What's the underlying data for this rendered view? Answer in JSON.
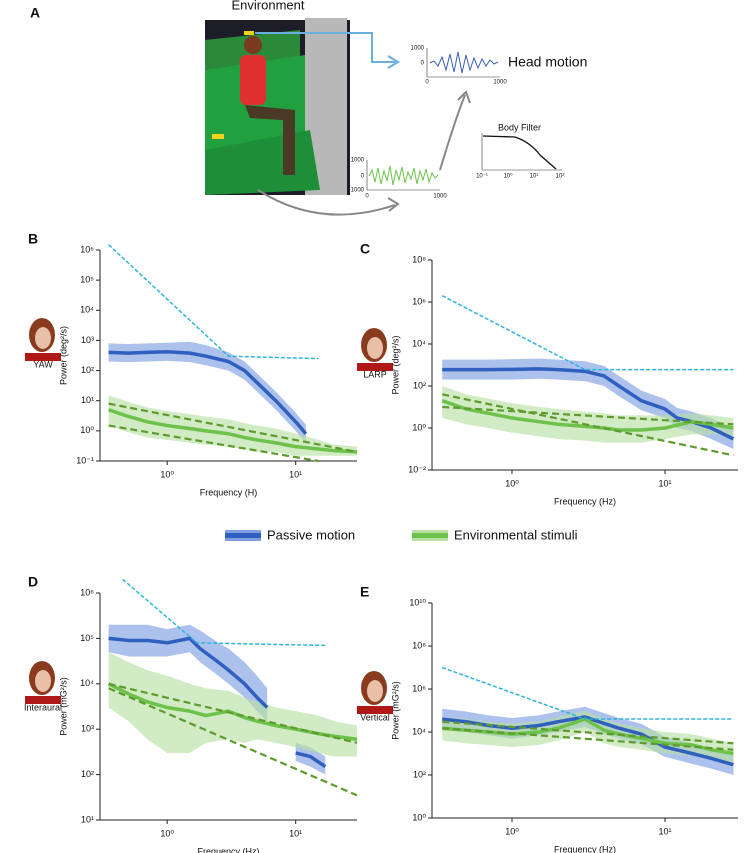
{
  "panel_a": {
    "label": "A",
    "environment": "Environment",
    "head_motion": "Head motion",
    "body_filter": "Body Filter",
    "head_chart": {
      "yticks": [
        1000,
        0
      ],
      "xticks": [
        0,
        1000
      ]
    },
    "env_chart": {
      "yticks": [
        1000,
        0,
        -1000
      ],
      "xticks": [
        0,
        1000
      ]
    },
    "filter_chart": {
      "xticks": [
        "10⁻¹",
        "10⁰",
        "10¹",
        "10²"
      ]
    }
  },
  "legend": [
    {
      "name": "Passive motion",
      "color": "#2f5fbf"
    },
    {
      "name": "Environmental stimuli",
      "color": "#6cc24a"
    }
  ],
  "chart_data": [
    {
      "type": "line",
      "panel": "B",
      "icon_label": "YAW",
      "ylabel": "Power (deg²/s)",
      "xlabel": "Frequency (H)",
      "log_x": true,
      "log_y": true,
      "xlim": [
        0.3,
        30
      ],
      "ylim": [
        0.1,
        1000000
      ],
      "xticks": [
        {
          "value": 1,
          "label": "10⁰"
        },
        {
          "value": 10,
          "label": "10¹"
        }
      ],
      "yticks": [
        {
          "value": 0.1,
          "label": "10⁻¹"
        },
        {
          "value": 1,
          "label": "10⁰"
        },
        {
          "value": 10,
          "label": "10¹"
        },
        {
          "value": 100,
          "label": "10²"
        },
        {
          "value": 1000,
          "label": "10³"
        },
        {
          "value": 10000,
          "label": "10⁴"
        },
        {
          "value": 100000,
          "label": "10⁵"
        },
        {
          "value": 1000000,
          "label": "10⁶"
        }
      ],
      "series": [
        {
          "color": "#2f5fbf",
          "band_color": "#7f9fe0",
          "x": [
            0.35,
            0.5,
            0.7,
            1,
            1.5,
            2,
            3,
            4,
            5,
            7,
            10,
            12
          ],
          "values": [
            400,
            380,
            400,
            420,
            380,
            300,
            200,
            100,
            40,
            10,
            2,
            0.8
          ],
          "lower": [
            200,
            190,
            200,
            210,
            190,
            150,
            100,
            50,
            20,
            5,
            1,
            0.4
          ],
          "upper": [
            800,
            760,
            800,
            840,
            900,
            700,
            400,
            200,
            80,
            20,
            4,
            1.6
          ]
        },
        {
          "color": "#6cc24a",
          "band_color": "#b9e0a4",
          "x": [
            0.35,
            0.5,
            0.7,
            1,
            1.5,
            2,
            3,
            4,
            5,
            7,
            10,
            15,
            20,
            30
          ],
          "values": [
            5,
            3,
            2,
            1.5,
            1.2,
            1,
            0.8,
            0.6,
            0.5,
            0.4,
            0.3,
            0.25,
            0.22,
            0.2
          ],
          "lower": [
            1.5,
            0.9,
            0.6,
            0.5,
            0.4,
            0.35,
            0.3,
            0.25,
            0.2,
            0.2,
            0.15,
            0.15,
            0.15,
            0.15
          ],
          "upper": [
            15,
            9,
            6,
            4.5,
            3.6,
            3,
            2.4,
            1.8,
            1.5,
            1.2,
            0.8,
            0.5,
            0.35,
            0.3
          ]
        }
      ],
      "fits": [
        {
          "color": "#2bb5d8",
          "x": [
            0.35,
            3,
            15
          ],
          "values": [
            1500000,
            300,
            250
          ]
        },
        {
          "color": "#5e9a2e",
          "x": [
            0.35,
            30
          ],
          "values": [
            8,
            0.2
          ]
        },
        {
          "color": "#5e9a2e",
          "x": [
            0.35,
            15
          ],
          "values": [
            1.5,
            0.1
          ]
        }
      ]
    },
    {
      "type": "line",
      "panel": "C",
      "icon_label": "LARP",
      "ylabel": "Power (deg²/s)",
      "xlabel": "Frequency (Hz)",
      "log_x": true,
      "log_y": true,
      "xlim": [
        0.3,
        30
      ],
      "ylim": [
        0.01,
        100000000
      ],
      "xticks": [
        {
          "value": 1,
          "label": "10⁰"
        },
        {
          "value": 10,
          "label": "10¹"
        }
      ],
      "yticks": [
        {
          "value": 0.01,
          "label": "10⁻²"
        },
        {
          "value": 1,
          "label": "10⁰"
        },
        {
          "value": 100,
          "label": "10²"
        },
        {
          "value": 10000,
          "label": "10⁴"
        },
        {
          "value": 1000000,
          "label": "10⁶"
        },
        {
          "value": 100000000,
          "label": "10⁸"
        }
      ],
      "series": [
        {
          "color": "#2f5fbf",
          "band_color": "#7f9fe0",
          "x": [
            0.35,
            0.5,
            0.7,
            1,
            1.5,
            2,
            3,
            4,
            5,
            7,
            10,
            12,
            15,
            20,
            28
          ],
          "values": [
            600,
            600,
            600,
            620,
            650,
            600,
            500,
            300,
            100,
            20,
            8,
            3,
            2,
            1,
            0.3
          ],
          "lower": [
            200,
            200,
            200,
            200,
            220,
            200,
            170,
            100,
            33,
            7,
            3,
            1,
            0.7,
            0.3,
            0.1
          ],
          "upper": [
            1800,
            1800,
            1800,
            1900,
            2000,
            1800,
            1500,
            900,
            300,
            60,
            24,
            9,
            6,
            3,
            0.9
          ]
        },
        {
          "color": "#6cc24a",
          "band_color": "#b9e0a4",
          "x": [
            0.35,
            0.5,
            0.7,
            1,
            1.5,
            2,
            3,
            4,
            5,
            7,
            10,
            15,
            20,
            28
          ],
          "values": [
            20,
            8,
            5,
            3,
            2,
            1.5,
            1.2,
            1,
            0.8,
            0.8,
            1,
            2,
            1.5,
            1
          ],
          "lower": [
            3,
            1.5,
            1,
            0.6,
            0.4,
            0.3,
            0.25,
            0.2,
            0.2,
            0.2,
            0.3,
            0.5,
            0.5,
            0.4
          ],
          "upper": [
            100,
            40,
            25,
            15,
            10,
            8,
            6,
            5,
            4,
            4,
            4,
            5,
            4,
            3
          ]
        }
      ],
      "fits": [
        {
          "color": "#2bb5d8",
          "x": [
            0.35,
            3,
            28
          ],
          "values": [
            2000000,
            600,
            600
          ]
        },
        {
          "color": "#5e9a2e",
          "x": [
            0.35,
            28
          ],
          "values": [
            40,
            0.05
          ]
        },
        {
          "color": "#5e9a2e",
          "x": [
            0.35,
            28
          ],
          "values": [
            10,
            1.5
          ]
        }
      ]
    },
    {
      "type": "line",
      "panel": "D",
      "icon_label": "Interaural",
      "ylabel": "Power (mG²/s)",
      "xlabel": "Frequency (Hz)",
      "log_x": true,
      "log_y": true,
      "xlim": [
        0.3,
        30
      ],
      "ylim": [
        10,
        1000000
      ],
      "xticks": [
        {
          "value": 1,
          "label": "10⁰"
        },
        {
          "value": 10,
          "label": "10¹"
        }
      ],
      "yticks": [
        {
          "value": 10,
          "label": "10¹"
        },
        {
          "value": 100,
          "label": "10²"
        },
        {
          "value": 1000,
          "label": "10³"
        },
        {
          "value": 10000,
          "label": "10⁴"
        },
        {
          "value": 100000,
          "label": "10⁵"
        },
        {
          "value": 1000000,
          "label": "10⁶"
        }
      ],
      "series": [
        {
          "color": "#2f5fbf",
          "band_color": "#7f9fe0",
          "x": [
            0.35,
            0.5,
            0.7,
            1,
            1.5,
            1.8,
            2.5,
            3,
            4,
            5,
            6,
            8,
            10,
            13,
            17
          ],
          "values": [
            100000,
            90000,
            90000,
            80000,
            100000,
            60000,
            30000,
            20000,
            10000,
            5000,
            3000,
            null,
            300,
            250,
            150
          ],
          "lower": [
            50000,
            40000,
            40000,
            40000,
            50000,
            30000,
            15000,
            10000,
            5000,
            2500,
            1500,
            null,
            200,
            150,
            100
          ],
          "upper": [
            200000,
            200000,
            200000,
            160000,
            200000,
            150000,
            80000,
            60000,
            30000,
            15000,
            8000,
            null,
            500,
            400,
            250
          ]
        },
        {
          "color": "#6cc24a",
          "band_color": "#b9e0a4",
          "x": [
            0.35,
            0.5,
            0.7,
            1,
            1.5,
            2,
            3,
            4,
            5,
            7,
            10,
            15,
            20,
            30
          ],
          "values": [
            10000,
            6000,
            4000,
            3000,
            2500,
            2000,
            2500,
            1800,
            1500,
            1200,
            1000,
            800,
            700,
            600
          ],
          "lower": [
            3000,
            1500,
            600,
            300,
            300,
            500,
            600,
            500,
            600,
            500,
            400,
            300,
            250,
            250
          ],
          "upper": [
            50000,
            30000,
            20000,
            15000,
            10000,
            8000,
            7000,
            5000,
            4000,
            3000,
            2500,
            2000,
            1500,
            1200
          ]
        }
      ],
      "fits": [
        {
          "color": "#2bb5d8",
          "x": [
            0.45,
            1.7,
            17
          ],
          "values": [
            2000000,
            80000,
            70000
          ]
        },
        {
          "color": "#5e9a2e",
          "x": [
            0.35,
            30
          ],
          "values": [
            8000,
            35
          ]
        },
        {
          "color": "#5e9a2e",
          "x": [
            0.35,
            30
          ],
          "values": [
            10000,
            500
          ]
        }
      ]
    },
    {
      "type": "line",
      "panel": "E",
      "icon_label": "Vertical",
      "ylabel": "Power (mG²/s)",
      "xlabel": "Frequency (Hz)",
      "log_x": true,
      "log_y": true,
      "xlim": [
        0.3,
        30
      ],
      "ylim": [
        1,
        10000000000
      ],
      "xticks": [
        {
          "value": 1,
          "label": "10⁰"
        },
        {
          "value": 10,
          "label": "10¹"
        }
      ],
      "yticks": [
        {
          "value": 1,
          "label": "10⁰"
        },
        {
          "value": 100,
          "label": "10²"
        },
        {
          "value": 10000,
          "label": "10⁴"
        },
        {
          "value": 1000000,
          "label": "10⁶"
        },
        {
          "value": 100000000,
          "label": "10⁸"
        },
        {
          "value": 10000000000,
          "label": "10¹⁰"
        }
      ],
      "series": [
        {
          "color": "#2f5fbf",
          "band_color": "#7f9fe0",
          "x": [
            0.35,
            0.5,
            0.7,
            1,
            1.5,
            2,
            3,
            4,
            5,
            7,
            10,
            15,
            20,
            28
          ],
          "values": [
            40000,
            30000,
            20000,
            15000,
            20000,
            30000,
            50000,
            25000,
            15000,
            8000,
            2000,
            1000,
            600,
            300
          ],
          "lower": [
            13000,
            10000,
            7000,
            5000,
            7000,
            10000,
            17000,
            8000,
            5000,
            2700,
            700,
            330,
            200,
            100
          ],
          "upper": [
            120000,
            90000,
            60000,
            45000,
            60000,
            90000,
            150000,
            75000,
            45000,
            24000,
            6000,
            3000,
            1800,
            900
          ]
        },
        {
          "color": "#6cc24a",
          "band_color": "#b9e0a4",
          "x": [
            0.35,
            0.5,
            0.7,
            1,
            1.5,
            2,
            3,
            4,
            5,
            7,
            10,
            15,
            20,
            28
          ],
          "values": [
            15000,
            12000,
            10000,
            8000,
            10000,
            15000,
            40000,
            12000,
            8000,
            5000,
            3000,
            2500,
            1500,
            1000
          ],
          "lower": [
            4000,
            3000,
            2500,
            2000,
            2500,
            4000,
            10000,
            3000,
            2000,
            1500,
            1000,
            800,
            500,
            300
          ],
          "upper": [
            50000,
            40000,
            30000,
            25000,
            30000,
            50000,
            100000,
            40000,
            25000,
            15000,
            10000,
            8000,
            5000,
            3000
          ]
        }
      ],
      "fits": [
        {
          "color": "#2bb5d8",
          "x": [
            0.35,
            3,
            28
          ],
          "values": [
            10000000,
            40000,
            40000
          ]
        },
        {
          "color": "#5e9a2e",
          "x": [
            0.35,
            28
          ],
          "values": [
            30000,
            3000
          ]
        },
        {
          "color": "#5e9a2e",
          "x": [
            0.35,
            28
          ],
          "values": [
            15000,
            1500
          ]
        }
      ]
    }
  ]
}
